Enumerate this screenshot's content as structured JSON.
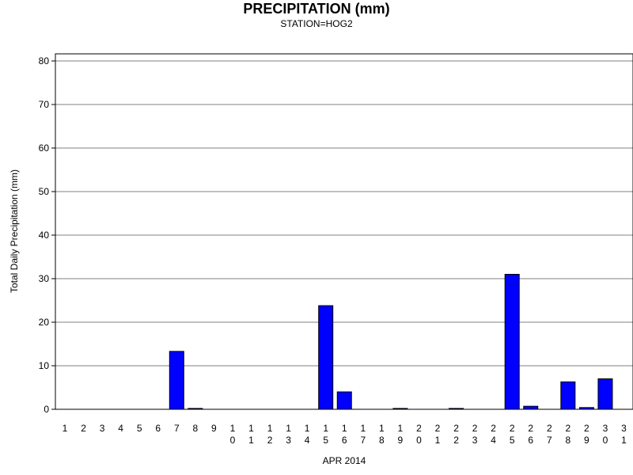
{
  "chart_data": {
    "type": "bar",
    "title": "PRECIPITATION (mm)",
    "subtitle": "STATION=HOG2",
    "xlabel": "APR 2014",
    "ylabel": "Total Daily Precipitation (mm)",
    "ylim": [
      0,
      80
    ],
    "yticks": [
      0,
      10,
      20,
      30,
      40,
      50,
      60,
      70,
      80
    ],
    "grid": true,
    "legend": "none",
    "bar_color": "#0000ff",
    "categories": [
      "1",
      "2",
      "3",
      "4",
      "5",
      "6",
      "7",
      "8",
      "9",
      "10",
      "11",
      "12",
      "13",
      "14",
      "15",
      "16",
      "17",
      "18",
      "19",
      "20",
      "21",
      "22",
      "23",
      "24",
      "25",
      "26",
      "27",
      "28",
      "29",
      "30",
      "31"
    ],
    "values": [
      0,
      0,
      0,
      0,
      0,
      0,
      13.3,
      0.2,
      0,
      0,
      0,
      0,
      0,
      0,
      23.8,
      4.0,
      0,
      0,
      0.2,
      0,
      0,
      0.2,
      0,
      0,
      31.0,
      0.7,
      0,
      6.3,
      0.4,
      7.0,
      0
    ]
  }
}
